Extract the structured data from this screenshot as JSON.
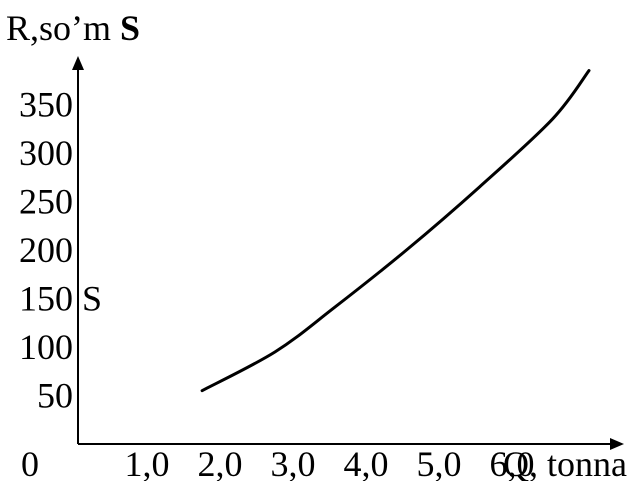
{
  "chart_data": {
    "type": "line",
    "ylabel": "R,so’m",
    "ylabel_bold": "S",
    "xlabel": "Q, tonna",
    "y_ticks": [
      "50",
      "100",
      "150",
      "200",
      "250",
      "300",
      "350"
    ],
    "x_ticks": [
      "0",
      "1,0",
      "2,0",
      "3,0",
      "4,0",
      "5,0",
      "6,0"
    ],
    "series_label": "S",
    "xlim": [
      0,
      7
    ],
    "ylim": [
      0,
      400
    ],
    "series": [
      {
        "x": [
          1.7,
          2.7,
          3.5,
          4.5,
          5.5,
          6.5,
          7.0
        ],
        "y": [
          55,
          95,
          140,
          200,
          265,
          335,
          385
        ]
      }
    ],
    "grid": false
  }
}
